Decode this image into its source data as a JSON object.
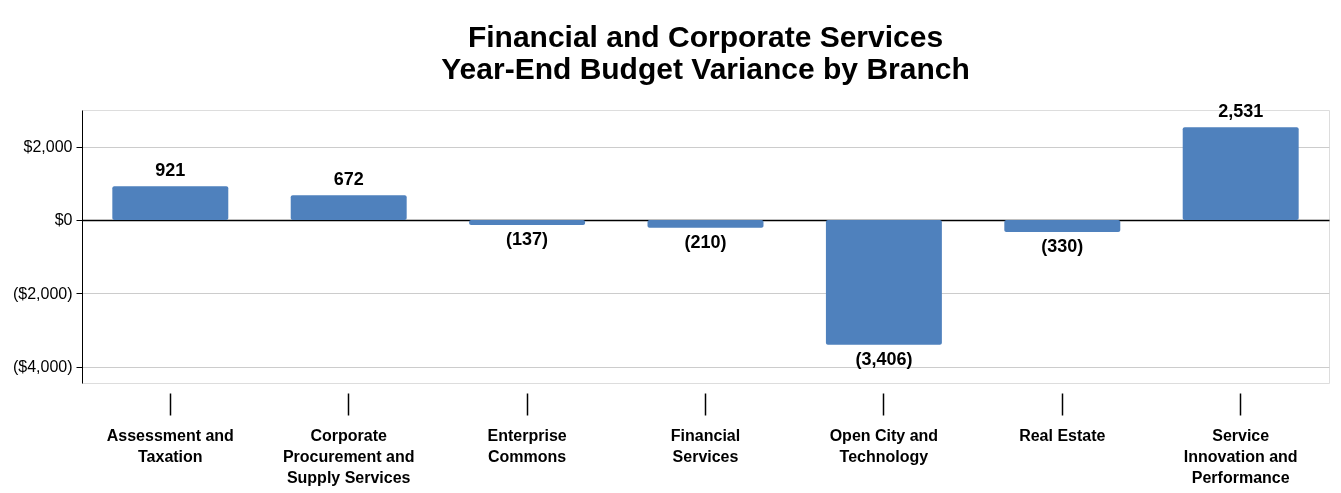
{
  "chart_data": {
    "type": "bar",
    "title": [
      "Financial and Corporate Services",
      "Year-End Budget Variance by Branch"
    ],
    "categories": [
      "Assessment and\nTaxation",
      "Corporate\nProcurement and\nSupply Services",
      "Enterprise\nCommons",
      "Financial\nServices",
      "Open City and\nTechnology",
      "Real Estate",
      "Service\nInnovation and\nPerformance"
    ],
    "values": [
      921,
      672,
      -137,
      -210,
      -3406,
      -330,
      2531
    ],
    "value_labels": [
      "921",
      "672",
      "(137)",
      "(210)",
      "(3,406)",
      "(330)",
      "2,531"
    ],
    "color": "#4f81bd",
    "ylim": [
      -4450,
      3000
    ],
    "yticks": [
      {
        "value": -4000,
        "label": "($4,000)"
      },
      {
        "value": -2000,
        "label": "($2,000)"
      },
      {
        "value": 0,
        "label": "$0"
      },
      {
        "value": 2000,
        "label": "$2,000"
      }
    ],
    "grid": "y"
  }
}
